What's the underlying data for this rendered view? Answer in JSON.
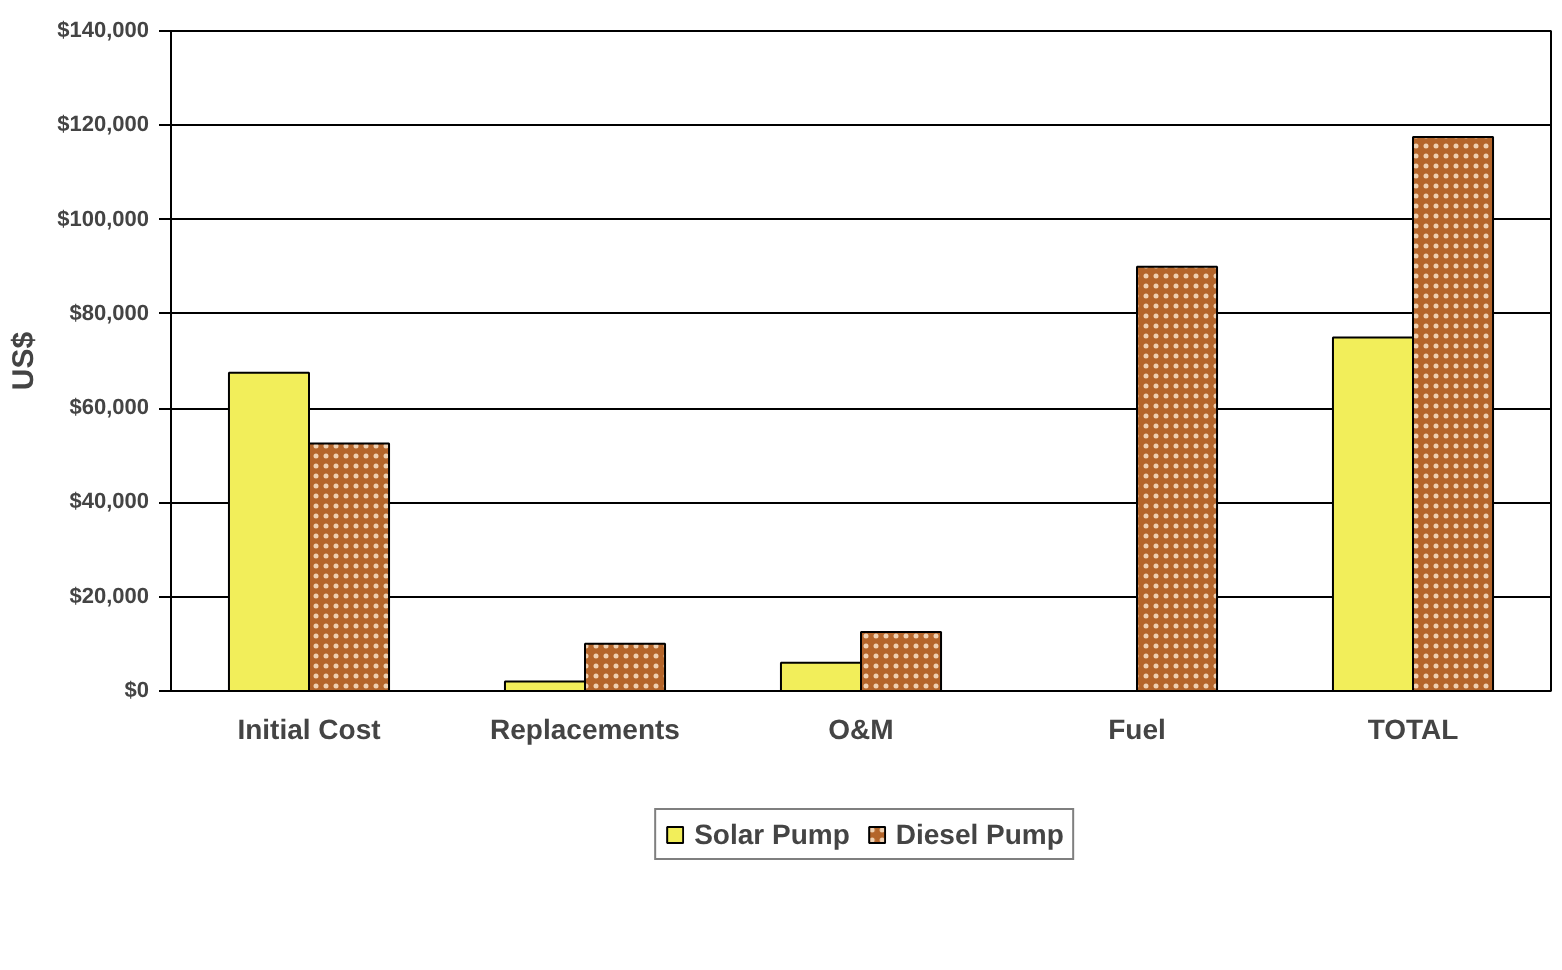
{
  "chart_data": {
    "type": "bar",
    "ylabel": "US$",
    "categories": [
      "Initial Cost",
      "Replacements",
      "O&M",
      "Fuel",
      "TOTAL"
    ],
    "series": [
      {
        "name": "Solar Pump",
        "color": "#f2ee5a",
        "values": [
          67500,
          2000,
          6000,
          null,
          75000
        ]
      },
      {
        "name": "Diesel Pump",
        "color": "#b4652a",
        "values": [
          52500,
          10000,
          12500,
          90000,
          117500
        ]
      }
    ],
    "ylim": [
      0,
      140000
    ],
    "yticks": [
      {
        "value": 0,
        "label": "$0"
      },
      {
        "value": 20000,
        "label": "$20,000"
      },
      {
        "value": 40000,
        "label": "$40,000"
      },
      {
        "value": 60000,
        "label": "$60,000"
      },
      {
        "value": 80000,
        "label": "$80,000"
      },
      {
        "value": 100000,
        "label": "$100,000"
      },
      {
        "value": 120000,
        "label": "$120,000"
      },
      {
        "value": 140000,
        "label": "$140,000"
      }
    ],
    "grid": "y",
    "legend": "bottom"
  }
}
